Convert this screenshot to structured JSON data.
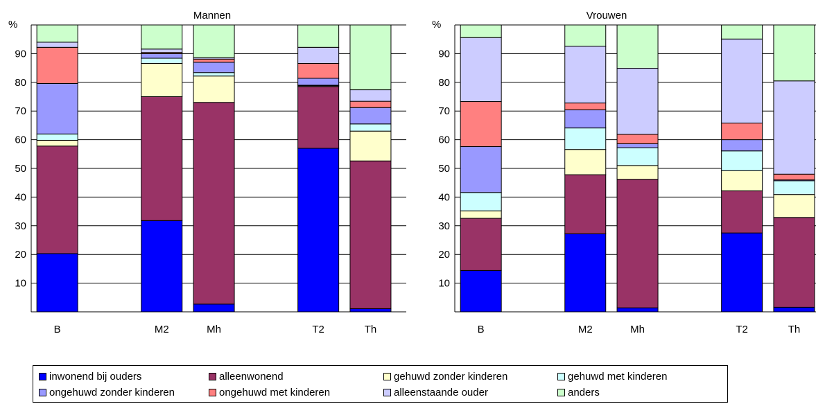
{
  "chart_data": [
    {
      "type": "bar",
      "stacked": true,
      "title": "Mannen",
      "ylabel": "%",
      "ylim": [
        0,
        100
      ],
      "yticks": [
        10,
        20,
        30,
        40,
        50,
        60,
        70,
        80,
        90
      ],
      "grid": true,
      "legend": "bottom",
      "categories": [
        "B",
        "M2",
        "Mh",
        "T2",
        "Th"
      ],
      "category_slots": [
        0,
        2,
        3,
        5,
        6
      ],
      "series": [
        {
          "name": "inwonend bij ouders",
          "values": [
            20.3,
            31.8,
            2.7,
            57.0,
            1.1
          ]
        },
        {
          "name": "alleenwonend",
          "values": [
            37.5,
            43.2,
            70.3,
            21.5,
            51.5
          ]
        },
        {
          "name": "gehuwd zonder kinderen",
          "values": [
            2.0,
            11.6,
            9.2,
            0.3,
            10.4
          ]
        },
        {
          "name": "gehuwd met kinderen",
          "values": [
            2.2,
            1.8,
            1.2,
            0.2,
            2.5
          ]
        },
        {
          "name": "ongehuwd zonder kinderen",
          "values": [
            17.6,
            1.6,
            3.6,
            2.4,
            5.7
          ]
        },
        {
          "name": "ongehuwd met kinderen",
          "values": [
            12.6,
            0.4,
            1.1,
            5.2,
            2.2
          ]
        },
        {
          "name": "alleenstaande ouder",
          "values": [
            1.8,
            1.2,
            0.5,
            5.6,
            4.0
          ]
        },
        {
          "name": "anders",
          "values": [
            6.0,
            8.4,
            11.4,
            7.8,
            22.6
          ]
        }
      ]
    },
    {
      "type": "bar",
      "stacked": true,
      "title": "Vrouwen",
      "ylabel": "%",
      "ylim": [
        0,
        100
      ],
      "yticks": [
        10,
        20,
        30,
        40,
        50,
        60,
        70,
        80,
        90
      ],
      "grid": true,
      "legend": "bottom",
      "categories": [
        "B",
        "M2",
        "Mh",
        "T2",
        "Th"
      ],
      "category_slots": [
        0,
        2,
        3,
        5,
        6
      ],
      "series": [
        {
          "name": "inwonend bij ouders",
          "values": [
            14.4,
            27.2,
            1.4,
            27.5,
            1.6
          ]
        },
        {
          "name": "alleenwonend",
          "values": [
            18.2,
            20.6,
            44.8,
            14.7,
            31.3
          ]
        },
        {
          "name": "gehuwd zonder kinderen",
          "values": [
            2.6,
            8.8,
            4.8,
            7.0,
            8.0
          ]
        },
        {
          "name": "gehuwd met kinderen",
          "values": [
            6.4,
            7.5,
            6.2,
            6.9,
            4.8
          ]
        },
        {
          "name": "ongehuwd zonder kinderen",
          "values": [
            16.0,
            6.3,
            1.4,
            3.9,
            0.3
          ]
        },
        {
          "name": "ongehuwd met kinderen",
          "values": [
            15.7,
            2.4,
            3.3,
            5.8,
            2.0
          ]
        },
        {
          "name": "alleenstaande ouder",
          "values": [
            22.3,
            19.8,
            23.0,
            29.3,
            32.5
          ]
        },
        {
          "name": "anders",
          "values": [
            4.4,
            7.4,
            15.1,
            4.9,
            19.5
          ]
        }
      ]
    }
  ],
  "legend": {
    "items": [
      {
        "label": "inwonend bij ouders",
        "color": "#0000FF"
      },
      {
        "label": "alleenwonend",
        "color": "#993366"
      },
      {
        "label": "gehuwd zonder kinderen",
        "color": "#FFFFCC"
      },
      {
        "label": "gehuwd met kinderen",
        "color": "#CCFFFF"
      },
      {
        "label": "ongehuwd zonder kinderen",
        "color": "#9999FF"
      },
      {
        "label": "ongehuwd met kinderen",
        "color": "#FF8080"
      },
      {
        "label": "alleenstaande ouder",
        "color": "#CCCCFF"
      },
      {
        "label": "anders",
        "color": "#CCFFCC"
      }
    ]
  }
}
